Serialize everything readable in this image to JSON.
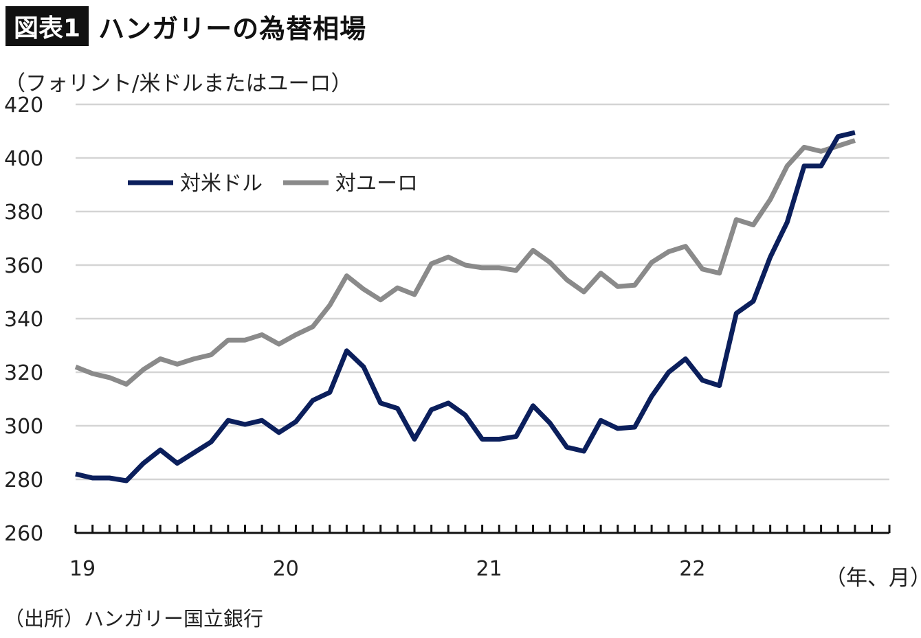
{
  "header": {
    "badge": "図表1",
    "title": "ハンガリーの為替相場"
  },
  "unit_label": "（フォリント/米ドルまたはユーロ）",
  "x_unit_label": "（年、月）",
  "source": "（出所）ハンガリー国立銀行",
  "colors": {
    "usd": "#0b1f5c",
    "eur": "#8a8a8a",
    "grid": "#d4d4d4",
    "axis": "#111111"
  },
  "chart_data": {
    "type": "line",
    "ylim": [
      260,
      420
    ],
    "yticks": [
      260,
      280,
      300,
      320,
      340,
      360,
      380,
      400,
      420
    ],
    "grid": true,
    "legend_position": "top-left",
    "x_start": "2019-01",
    "x_end": "2022-12",
    "x_tick_labels": [
      {
        "label": "19",
        "month": "2019-01"
      },
      {
        "label": "20",
        "month": "2020-01"
      },
      {
        "label": "21",
        "month": "2021-01"
      },
      {
        "label": "22",
        "month": "2022-01"
      }
    ],
    "series": [
      {
        "name": "対米ドル",
        "color": "#0b1f5c",
        "start": "2019-01",
        "values": [
          282,
          280.5,
          280.5,
          279.5,
          286,
          291,
          286,
          290,
          294,
          302,
          300.5,
          302,
          297.5,
          301.5,
          309.5,
          312.5,
          328,
          322,
          308.5,
          306.5,
          295,
          306,
          308.5,
          304,
          295,
          295,
          296,
          307.5,
          301,
          292,
          290.5,
          302,
          299,
          299.5,
          311,
          320,
          325,
          317,
          315,
          342,
          346.5,
          363,
          376,
          397,
          397,
          408,
          409.5
        ]
      },
      {
        "name": "対ユーロ",
        "color": "#8a8a8a",
        "start": "2019-01",
        "values": [
          322,
          319.5,
          318,
          315.5,
          321,
          325,
          323,
          325,
          326.5,
          332,
          332,
          334,
          330.5,
          334,
          337,
          345,
          356,
          351,
          347,
          351.5,
          349,
          360.5,
          363,
          360,
          359,
          359,
          358,
          365.5,
          361,
          354.5,
          350,
          357,
          352,
          352.5,
          361,
          365,
          367,
          358.5,
          357,
          377,
          375,
          384.5,
          397,
          404,
          402.5,
          404.5,
          406.5
        ]
      }
    ]
  }
}
